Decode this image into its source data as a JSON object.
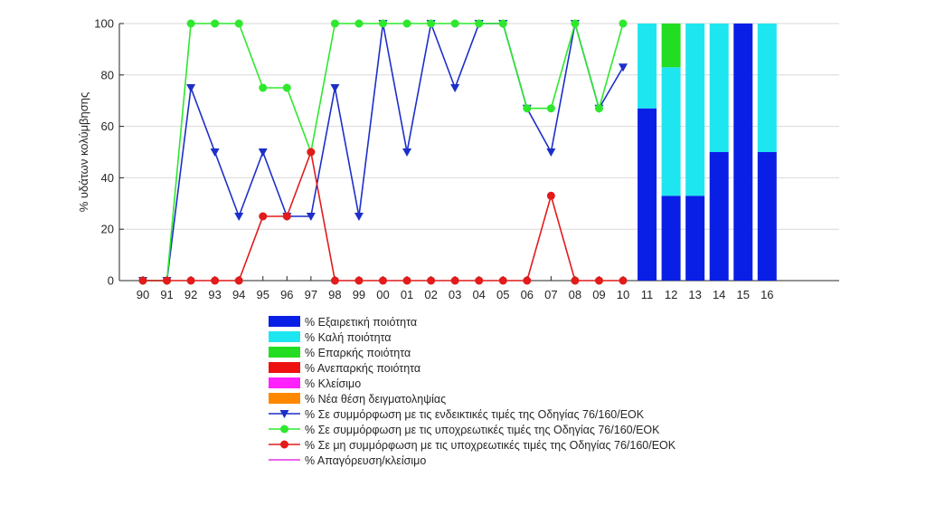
{
  "chart_data": {
    "type": "line",
    "ylabel": "% υδάτων κολύμβησης",
    "xlabel": "",
    "ylim": [
      0,
      100
    ],
    "yticks": [
      0,
      20,
      40,
      60,
      80,
      100
    ],
    "grid": "horizontal",
    "categories": [
      "90",
      "91",
      "92",
      "93",
      "94",
      "95",
      "96",
      "97",
      "98",
      "99",
      "00",
      "01",
      "02",
      "03",
      "04",
      "05",
      "06",
      "07",
      "08",
      "09",
      "10",
      "11",
      "12",
      "13",
      "14",
      "15",
      "16"
    ],
    "line_series": [
      {
        "name": "% Σε συμμόρφωση με τις ενδεικτικές τιμές της Οδηγίας 76/160/ΕΟΚ",
        "color": "#1c2fc9",
        "marker": "triangle-down",
        "values": [
          0,
          0,
          75,
          50,
          25,
          50,
          25,
          25,
          75,
          25,
          100,
          50,
          100,
          75,
          100,
          100,
          67,
          50,
          100,
          67,
          83
        ]
      },
      {
        "name": "% Σε συμμόρφωση με τις υποχρεωτικές τιμές της Οδηγίας 76/160/ΕΟΚ",
        "color": "#2ee82e",
        "marker": "circle",
        "values": [
          0,
          0,
          100,
          100,
          100,
          75,
          75,
          50,
          100,
          100,
          100,
          100,
          100,
          100,
          100,
          100,
          67,
          67,
          100,
          67,
          100
        ]
      },
      {
        "name": "% Σε μη συμμόρφωση με τις υποχρεωτικές τιμές της Οδηγίας 76/160/ΕΟΚ",
        "color": "#e21b1b",
        "marker": "circle",
        "values": [
          0,
          0,
          0,
          0,
          0,
          25,
          25,
          50,
          0,
          0,
          0,
          0,
          0,
          0,
          0,
          0,
          0,
          33,
          0,
          0,
          0
        ]
      }
    ],
    "bar_series": [
      {
        "name": "% Εξαιρετική ποιότητα",
        "color": "#0a1fe6",
        "values": [
          67,
          33,
          33,
          50,
          100,
          50
        ]
      },
      {
        "name": "% Καλή ποιότητα",
        "color": "#1ee6f0",
        "values": [
          33,
          50,
          67,
          50,
          0,
          50
        ]
      },
      {
        "name": "% Επαρκής ποιότητα",
        "color": "#22dd22",
        "values": [
          0,
          17,
          0,
          0,
          0,
          0
        ]
      },
      {
        "name": "% Ανεπαρκής ποιότητα",
        "color": "#ee1111",
        "values": [
          0,
          0,
          0,
          0,
          0,
          0
        ]
      },
      {
        "name": "% Κλείσιμο",
        "color": "#ff22ff",
        "values": [
          0,
          0,
          0,
          0,
          0,
          0
        ]
      },
      {
        "name": "% Νέα θέση δειγματοληψίας",
        "color": "#ff8800",
        "values": [
          0,
          0,
          0,
          0,
          0,
          0
        ]
      }
    ],
    "bar_categories": [
      "11",
      "12",
      "13",
      "14",
      "15",
      "16"
    ],
    "legend": {
      "placement": "bottom",
      "entries": [
        {
          "label": "% Εξαιρετική ποιότητα",
          "kind": "patch",
          "color": "#0a1fe6"
        },
        {
          "label": "% Καλή ποιότητα",
          "kind": "patch",
          "color": "#1ee6f0"
        },
        {
          "label": "% Επαρκής ποιότητα",
          "kind": "patch",
          "color": "#22dd22"
        },
        {
          "label": "% Ανεπαρκής ποιότητα",
          "kind": "patch",
          "color": "#ee1111"
        },
        {
          "label": "% Κλείσιμο",
          "kind": "patch",
          "color": "#ff22ff"
        },
        {
          "label": "% Νέα θέση δειγματοληψίας",
          "kind": "patch",
          "color": "#ff8800"
        },
        {
          "label": "% Σε συμμόρφωση με τις ενδεικτικές τιμές της Οδηγίας 76/160/ΕΟΚ",
          "kind": "line",
          "marker": "triangle-down",
          "color": "#1c2fc9"
        },
        {
          "label": "% Σε συμμόρφωση με τις υποχρεωτικές τιμές της Οδηγίας 76/160/ΕΟΚ",
          "kind": "line",
          "marker": "circle",
          "color": "#2ee82e"
        },
        {
          "label": "% Σε μη συμμόρφωση με τις υποχρεωτικές τιμές της Οδηγίας 76/160/ΕΟΚ",
          "kind": "line",
          "marker": "circle",
          "color": "#e21b1b"
        },
        {
          "label": "% Απαγόρευση/κλείσιμο",
          "kind": "line",
          "marker": "none",
          "color": "#e633e6"
        }
      ]
    }
  }
}
